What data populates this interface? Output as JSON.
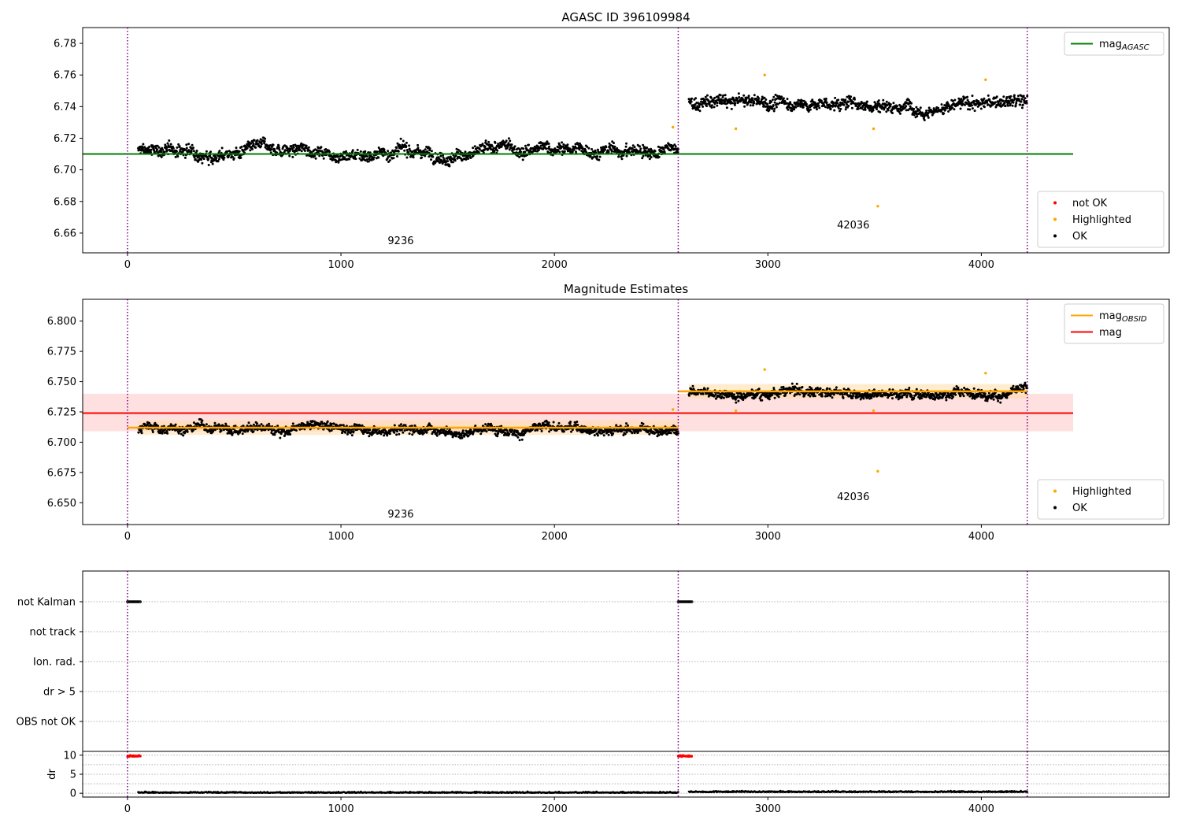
{
  "figure": {
    "colors": {
      "ok": "#000000",
      "highlighted": "#ffa500",
      "not_ok": "#ff0000",
      "agasc_line": "#008000",
      "obsid_line": "#ffa500",
      "mag_line": "#ff0000",
      "band": "#ffcccc",
      "obs_boundary": "#800080",
      "grid": "#b0b0b0"
    }
  },
  "chart_data": [
    {
      "id": "panel1",
      "type": "scatter",
      "title": "AGASC ID 396109984",
      "xlim": [
        -210,
        4880
      ],
      "ylim": [
        6.6475,
        6.79
      ],
      "xticks": [
        0,
        1000,
        2000,
        3000,
        4000
      ],
      "yticks": [
        6.66,
        6.68,
        6.7,
        6.72,
        6.74,
        6.76,
        6.78
      ],
      "ytick_labels": [
        "6.66",
        "6.68",
        "6.70",
        "6.72",
        "6.74",
        "6.76",
        "6.78"
      ],
      "obs_boundaries": [
        0,
        2580,
        4215
      ],
      "observations": [
        {
          "label": "9236",
          "label_x": 1280,
          "label_y": 6.653,
          "x_start": 50,
          "x_end": 2580,
          "mean": 6.712
        },
        {
          "label": "42036",
          "label_x": 3400,
          "label_y": 6.663,
          "x_start": 2630,
          "x_end": 4215,
          "mean": 6.742
        }
      ],
      "hlines": [
        {
          "name": "agasc",
          "y": 6.71,
          "x_start": -210,
          "x_end": 4430
        }
      ],
      "highlighted_points": [
        [
          2555,
          6.727
        ],
        [
          2850,
          6.726
        ],
        [
          2985,
          6.76
        ],
        [
          3495,
          6.726
        ],
        [
          3515,
          6.677
        ],
        [
          4020,
          6.757
        ]
      ],
      "legends": [
        {
          "position": "upper-right",
          "entries": [
            {
              "kind": "line",
              "label": "mag",
              "sub": "AGASC",
              "color_key": "agasc_line"
            }
          ]
        },
        {
          "position": "lower-right",
          "entries": [
            {
              "kind": "dot",
              "label": "not OK",
              "color_key": "not_ok"
            },
            {
              "kind": "dot",
              "label": "Highlighted",
              "color_key": "highlighted"
            },
            {
              "kind": "dot",
              "label": "OK",
              "color_key": "ok"
            }
          ]
        }
      ]
    },
    {
      "id": "panel2",
      "type": "scatter",
      "title": "Magnitude Estimates",
      "xlim": [
        -210,
        4880
      ],
      "ylim": [
        6.632,
        6.818
      ],
      "xticks": [
        0,
        1000,
        2000,
        3000,
        4000
      ],
      "yticks": [
        6.65,
        6.675,
        6.7,
        6.725,
        6.75,
        6.775,
        6.8
      ],
      "ytick_labels": [
        "6.650",
        "6.675",
        "6.700",
        "6.725",
        "6.750",
        "6.775",
        "6.800"
      ],
      "obs_boundaries": [
        0,
        2580,
        4215
      ],
      "observations": [
        {
          "label": "9236",
          "label_x": 1280,
          "label_y": 6.638,
          "x_start": 50,
          "x_end": 2580,
          "mean": 6.712
        },
        {
          "label": "42036",
          "label_x": 3400,
          "label_y": 6.652,
          "x_start": 2630,
          "x_end": 4215,
          "mean": 6.742
        }
      ],
      "band": {
        "y0": 6.709,
        "y1": 6.74,
        "x_start": -210,
        "x_end": 4430
      },
      "hlines": [
        {
          "name": "mag",
          "y": 6.724,
          "x_start": -210,
          "x_end": 4430
        }
      ],
      "obs_lines": [
        {
          "y": 6.712,
          "x_start": 0,
          "x_end": 2580
        },
        {
          "y": 6.742,
          "x_start": 2580,
          "x_end": 4215
        }
      ],
      "highlighted_points": [
        [
          2555,
          6.727
        ],
        [
          2850,
          6.726
        ],
        [
          2985,
          6.76
        ],
        [
          3495,
          6.726
        ],
        [
          3515,
          6.676
        ],
        [
          4020,
          6.757
        ]
      ],
      "legends": [
        {
          "position": "upper-right",
          "entries": [
            {
              "kind": "line",
              "label": "mag",
              "sub": "OBSID",
              "color_key": "obsid_line"
            },
            {
              "kind": "line",
              "label": "mag",
              "sub": "",
              "color_key": "mag_line"
            }
          ]
        },
        {
          "position": "lower-right",
          "entries": [
            {
              "kind": "dot",
              "label": "Highlighted",
              "color_key": "highlighted"
            },
            {
              "kind": "dot",
              "label": "OK",
              "color_key": "ok"
            }
          ]
        }
      ]
    },
    {
      "id": "panel3",
      "type": "scatter",
      "title": "",
      "xlim": [
        -210,
        4880
      ],
      "category_labels": [
        "not Kalman",
        "not track",
        "Ion. rad.",
        "dr > 5",
        "OBS not OK"
      ],
      "flag_points": [
        {
          "category": "not Kalman",
          "ranges": [
            [
              0,
              60
            ],
            [
              2580,
              2645
            ]
          ]
        }
      ]
    },
    {
      "id": "panel4",
      "type": "scatter",
      "title": "",
      "ylabel": "dr",
      "xlim": [
        -210,
        4880
      ],
      "ylim": [
        -1,
        11
      ],
      "xticks": [
        0,
        1000,
        2000,
        3000,
        4000
      ],
      "xtick_labels": [
        "0",
        "1000",
        "2000",
        "3000",
        "4000"
      ],
      "yticks": [
        0,
        5,
        10
      ],
      "ytick_labels": [
        "0",
        "5",
        "10"
      ],
      "red_ranges": [
        {
          "x_start": 0,
          "x_end": 60,
          "y": 9.8
        },
        {
          "x_start": 2580,
          "x_end": 2645,
          "y": 9.8
        }
      ],
      "segments": [
        {
          "x_start": 50,
          "x_end": 2580,
          "baseline": 0.1
        },
        {
          "x_start": 2630,
          "x_end": 4215,
          "baseline": 0.3
        }
      ]
    }
  ]
}
